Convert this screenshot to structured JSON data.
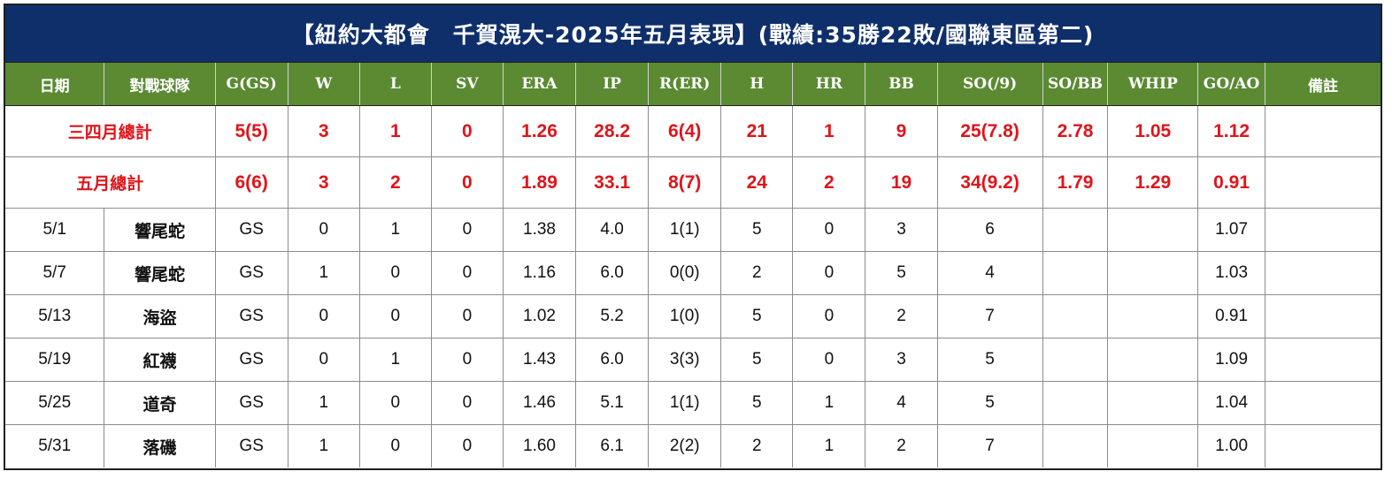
{
  "title": "【紐約大都會　千賀滉大-2025年五月表現】(戰績:35勝22敗/國聯東區第二)",
  "colors": {
    "title_bg": "#0f2f6b",
    "header_bg": "#5b8a33",
    "summary_text": "#e0141a"
  },
  "headers": [
    "日期",
    "對戰球隊",
    "G(GS)",
    "W",
    "L",
    "SV",
    "ERA",
    "IP",
    "R(ER)",
    "H",
    "HR",
    "BB",
    "SO(/9)",
    "SO/BB",
    "WHIP",
    "GO/AO",
    "備註"
  ],
  "summaries": [
    {
      "label": "三四月總計",
      "g": "5(5)",
      "w": "3",
      "l": "1",
      "sv": "0",
      "era": "1.26",
      "ip": "28.2",
      "r": "6(4)",
      "h": "21",
      "hr": "1",
      "bb": "9",
      "so": "25(7.8)",
      "sobb": "2.78",
      "whip": "1.05",
      "goao": "1.12",
      "note": ""
    },
    {
      "label": "五月總計",
      "g": "6(6)",
      "w": "3",
      "l": "2",
      "sv": "0",
      "era": "1.89",
      "ip": "33.1",
      "r": "8(7)",
      "h": "24",
      "hr": "2",
      "bb": "19",
      "so": "34(9.2)",
      "sobb": "1.79",
      "whip": "1.29",
      "goao": "0.91",
      "note": ""
    }
  ],
  "games": [
    {
      "date": "5/1",
      "opp": "響尾蛇",
      "g": "GS",
      "w": "0",
      "l": "1",
      "sv": "0",
      "era": "1.38",
      "ip": "4.0",
      "r": "1(1)",
      "h": "5",
      "hr": "0",
      "bb": "3",
      "so": "6",
      "sobb": "",
      "whip": "",
      "goao": "1.07",
      "note": ""
    },
    {
      "date": "5/7",
      "opp": "響尾蛇",
      "g": "GS",
      "w": "1",
      "l": "0",
      "sv": "0",
      "era": "1.16",
      "ip": "6.0",
      "r": "0(0)",
      "h": "2",
      "hr": "0",
      "bb": "5",
      "so": "4",
      "sobb": "",
      "whip": "",
      "goao": "1.03",
      "note": ""
    },
    {
      "date": "5/13",
      "opp": "海盜",
      "g": "GS",
      "w": "0",
      "l": "0",
      "sv": "0",
      "era": "1.02",
      "ip": "5.2",
      "r": "1(0)",
      "h": "5",
      "hr": "0",
      "bb": "2",
      "so": "7",
      "sobb": "",
      "whip": "",
      "goao": "0.91",
      "note": ""
    },
    {
      "date": "5/19",
      "opp": "紅襪",
      "g": "GS",
      "w": "0",
      "l": "1",
      "sv": "0",
      "era": "1.43",
      "ip": "6.0",
      "r": "3(3)",
      "h": "5",
      "hr": "0",
      "bb": "3",
      "so": "5",
      "sobb": "",
      "whip": "",
      "goao": "1.09",
      "note": ""
    },
    {
      "date": "5/25",
      "opp": "道奇",
      "g": "GS",
      "w": "1",
      "l": "0",
      "sv": "0",
      "era": "1.46",
      "ip": "5.1",
      "r": "1(1)",
      "h": "5",
      "hr": "1",
      "bb": "4",
      "so": "5",
      "sobb": "",
      "whip": "",
      "goao": "1.04",
      "note": ""
    },
    {
      "date": "5/31",
      "opp": "落磯",
      "g": "GS",
      "w": "1",
      "l": "0",
      "sv": "0",
      "era": "1.60",
      "ip": "6.1",
      "r": "2(2)",
      "h": "2",
      "hr": "1",
      "bb": "2",
      "so": "7",
      "sobb": "",
      "whip": "",
      "goao": "1.00",
      "note": ""
    }
  ]
}
